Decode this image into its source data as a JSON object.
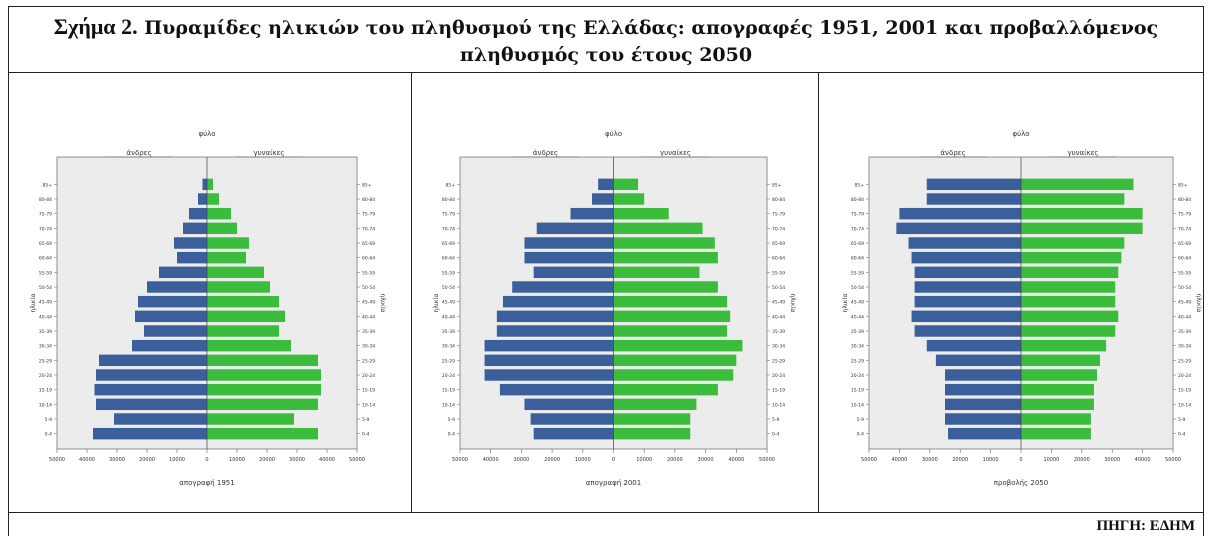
{
  "title": {
    "label": "Σχήμα 2.",
    "line1": "Πυραμίδες ηλικιών του πληθυσμού της Ελλάδας: απογραφές 1951, 2001 και προβαλλόμενος",
    "line2": "πληθυσμός του έτους 2050"
  },
  "source": "ΠΗΓΗ: ΕΔΗΜ",
  "colors": {
    "male": "#3a5f9a",
    "female": "#3cbc3c",
    "plot_bg": "#ececec"
  },
  "chart_data": [
    {
      "type": "bar",
      "title": "φύλο",
      "xlabel": "απογραφή 1951",
      "ylabel": "ηλικία",
      "ylabel_right": "ηλικία",
      "left_label": "άνδρες",
      "right_label": "γυναίκες",
      "xlim": [
        -50000,
        50000
      ],
      "x_ticks": [
        "50000",
        "40000",
        "30000",
        "20000",
        "10000",
        "0",
        "10000",
        "20000",
        "30000",
        "40000",
        "50000"
      ],
      "categories": [
        "0-4",
        "5-9",
        "10-14",
        "15-19",
        "20-24",
        "25-29",
        "30-34",
        "35-39",
        "40-44",
        "45-49",
        "50-54",
        "55-59",
        "60-64",
        "65-69",
        "70-74",
        "75-79",
        "80-84",
        "85+"
      ],
      "series": [
        {
          "name": "άνδρες",
          "values": [
            38000,
            31000,
            37000,
            37500,
            37000,
            36000,
            25000,
            21000,
            24000,
            23000,
            20000,
            16000,
            10000,
            11000,
            8000,
            6000,
            3000,
            1500
          ]
        },
        {
          "name": "γυναίκες",
          "values": [
            37000,
            29000,
            37000,
            38000,
            38000,
            37000,
            28000,
            24000,
            26000,
            24000,
            21000,
            19000,
            13000,
            14000,
            10000,
            8000,
            4000,
            2000
          ]
        }
      ]
    },
    {
      "type": "bar",
      "title": "φύλο",
      "xlabel": "απογραφή 2001",
      "ylabel": "ηλικία",
      "ylabel_right": "ηλικία",
      "left_label": "άνδρες",
      "right_label": "γυναίκες",
      "xlim": [
        -50000,
        50000
      ],
      "x_ticks": [
        "50000",
        "40000",
        "30000",
        "20000",
        "10000",
        "0",
        "10000",
        "20000",
        "30000",
        "40000",
        "50000"
      ],
      "categories": [
        "0-4",
        "5-9",
        "10-14",
        "15-19",
        "20-24",
        "25-29",
        "30-34",
        "35-39",
        "40-44",
        "45-49",
        "50-54",
        "55-59",
        "60-64",
        "65-69",
        "70-74",
        "75-79",
        "80-84",
        "85+"
      ],
      "series": [
        {
          "name": "άνδρες",
          "values": [
            26000,
            27000,
            29000,
            37000,
            42000,
            42000,
            42000,
            38000,
            38000,
            36000,
            33000,
            26000,
            29000,
            29000,
            25000,
            14000,
            7000,
            5000
          ]
        },
        {
          "name": "γυναίκες",
          "values": [
            25000,
            25000,
            27000,
            34000,
            39000,
            40000,
            42000,
            37000,
            38000,
            37000,
            34000,
            28000,
            34000,
            33000,
            29000,
            18000,
            10000,
            8000
          ]
        }
      ]
    },
    {
      "type": "bar",
      "title": "φύλο",
      "xlabel": "προβολής 2050",
      "ylabel": "ηλικία",
      "ylabel_right": "ηλικία",
      "left_label": "άνδρες",
      "right_label": "γυναίκες",
      "xlim": [
        -50000,
        50000
      ],
      "x_ticks": [
        "50000",
        "40000",
        "30000",
        "20000",
        "10000",
        "0",
        "10000",
        "20000",
        "30000",
        "40000",
        "50000"
      ],
      "categories": [
        "0-4",
        "5-9",
        "10-14",
        "15-19",
        "20-24",
        "25-29",
        "30-34",
        "35-39",
        "40-44",
        "45-49",
        "50-54",
        "55-59",
        "60-64",
        "65-69",
        "70-74",
        "75-79",
        "80-84",
        "85+"
      ],
      "series": [
        {
          "name": "άνδρες",
          "values": [
            24000,
            25000,
            25000,
            25000,
            25000,
            28000,
            31000,
            35000,
            36000,
            35000,
            35000,
            35000,
            36000,
            37000,
            41000,
            40000,
            31000,
            31000
          ]
        },
        {
          "name": "γυναίκες",
          "values": [
            23000,
            23000,
            24000,
            24000,
            25000,
            26000,
            28000,
            31000,
            32000,
            31000,
            31000,
            32000,
            33000,
            34000,
            40000,
            40000,
            34000,
            37000
          ]
        }
      ]
    }
  ]
}
